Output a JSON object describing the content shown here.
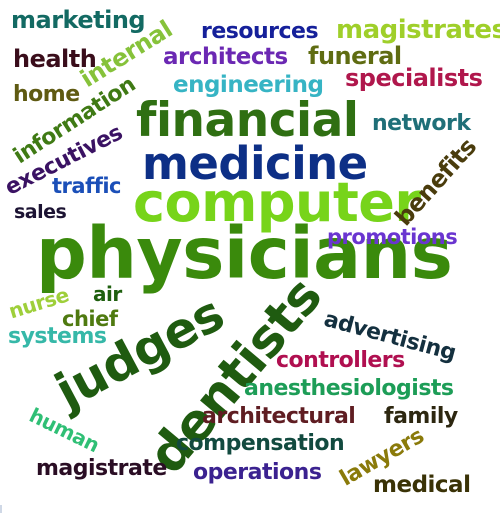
{
  "word_cloud": {
    "words": [
      {
        "id": "physicians",
        "text": "physicians",
        "color": "#3a8a0c"
      },
      {
        "id": "computer",
        "text": "computer",
        "color": "#77d41a"
      },
      {
        "id": "medicine",
        "text": "medicine",
        "color": "#0d2f86"
      },
      {
        "id": "financial",
        "text": "financial",
        "color": "#2f6f12"
      },
      {
        "id": "dentists",
        "text": "dentists",
        "color": "#1f5b10"
      },
      {
        "id": "judges",
        "text": "judges",
        "color": "#1f5b10"
      },
      {
        "id": "marketing",
        "text": "marketing",
        "color": "#136a63"
      },
      {
        "id": "internal",
        "text": "internal",
        "color": "#86c23a"
      },
      {
        "id": "resources",
        "text": "resources",
        "color": "#15209a"
      },
      {
        "id": "magistrates",
        "text": "magistrates",
        "color": "#9fcf2a"
      },
      {
        "id": "health",
        "text": "health",
        "color": "#3a0d1b"
      },
      {
        "id": "architects",
        "text": "architects",
        "color": "#6b28b3"
      },
      {
        "id": "funeral",
        "text": "funeral",
        "color": "#5f6c12"
      },
      {
        "id": "home",
        "text": "home",
        "color": "#5f5a12"
      },
      {
        "id": "engineering",
        "text": "engineering",
        "color": "#36b4c4"
      },
      {
        "id": "specialists",
        "text": "specialists",
        "color": "#b0174c"
      },
      {
        "id": "information",
        "text": "information",
        "color": "#3f7a14"
      },
      {
        "id": "network",
        "text": "network",
        "color": "#1f6f78"
      },
      {
        "id": "executives",
        "text": "executives",
        "color": "#3a1263"
      },
      {
        "id": "traffic",
        "text": "traffic",
        "color": "#1b4fb8"
      },
      {
        "id": "benefits",
        "text": "benefits",
        "color": "#4a3c0c"
      },
      {
        "id": "sales",
        "text": "sales",
        "color": "#1c1333"
      },
      {
        "id": "promotions",
        "text": "promotions",
        "color": "#6a35d0"
      },
      {
        "id": "nurse",
        "text": "nurse",
        "color": "#9ecf3a"
      },
      {
        "id": "air",
        "text": "air",
        "color": "#1e5f0e"
      },
      {
        "id": "chief",
        "text": "chief",
        "color": "#4f7a10"
      },
      {
        "id": "systems",
        "text": "systems",
        "color": "#36b8a8"
      },
      {
        "id": "advertising",
        "text": "advertising",
        "color": "#14303f"
      },
      {
        "id": "controllers",
        "text": "controllers",
        "color": "#b00f50"
      },
      {
        "id": "anesthesiologists",
        "text": "anesthesiologists",
        "color": "#1d9d57"
      },
      {
        "id": "human",
        "text": "human",
        "color": "#2fbf75"
      },
      {
        "id": "architectural",
        "text": "architectural",
        "color": "#5f1d22"
      },
      {
        "id": "family",
        "text": "family",
        "color": "#2d2710"
      },
      {
        "id": "compensation",
        "text": "compensation",
        "color": "#124a3f"
      },
      {
        "id": "lawyers",
        "text": "lawyers",
        "color": "#8a7a0a"
      },
      {
        "id": "magistrate",
        "text": "magistrate",
        "color": "#2a0d24"
      },
      {
        "id": "operations",
        "text": "operations",
        "color": "#3b2290"
      },
      {
        "id": "medical",
        "text": "medical",
        "color": "#3a3206"
      }
    ]
  }
}
